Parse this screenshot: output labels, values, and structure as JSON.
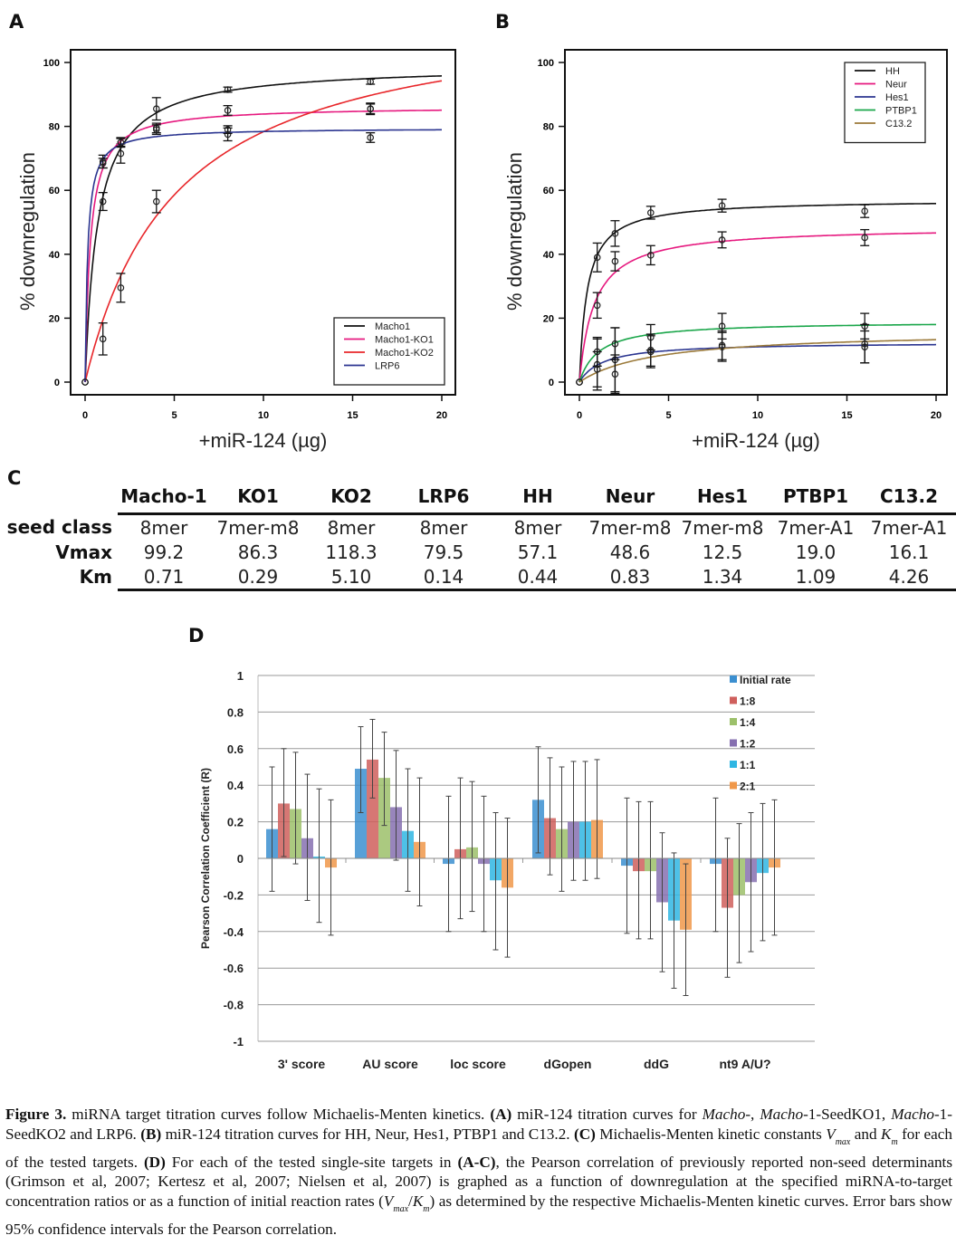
{
  "panels": {
    "A": {
      "letter": "A"
    },
    "B": {
      "letter": "B"
    },
    "C": {
      "letter": "C"
    },
    "D": {
      "letter": "D"
    }
  },
  "chart_data": [
    {
      "id": "A",
      "type": "line",
      "title": "",
      "xlabel": "+miR-124 (µg)",
      "ylabel": "% downregulation",
      "xlim": [
        0,
        20
      ],
      "ylim": [
        0,
        100
      ],
      "xticks": [
        0,
        5,
        10,
        15,
        20
      ],
      "yticks": [
        0,
        20,
        40,
        60,
        80,
        100
      ],
      "legend_position": "bottom-right",
      "x": [
        0,
        1,
        2,
        4,
        8,
        16
      ],
      "series": [
        {
          "name": "Macho1",
          "color": "#111111",
          "vmax": 99.2,
          "km": 0.71,
          "points": [
            0,
            56.5,
            71.5,
            85.5,
            91.5,
            94
          ],
          "err": [
            0,
            2.8,
            3,
            3.5,
            0.8,
            0.8
          ]
        },
        {
          "name": "Macho1-KO1",
          "color": "#e6197f",
          "vmax": 86.3,
          "km": 0.29,
          "points": [
            0,
            69,
            75,
            79.5,
            85,
            85.5
          ],
          "err": [
            0,
            2,
            1.5,
            1.5,
            1.5,
            1.8
          ]
        },
        {
          "name": "Macho1-KO2",
          "color": "#e8262a",
          "vmax": 118.3,
          "km": 5.1,
          "points": [
            0,
            13.5,
            29.5,
            56.5,
            77.5,
            76.5
          ],
          "err": [
            0,
            5,
            4.5,
            3.5,
            2,
            1.5
          ]
        },
        {
          "name": "LRP6",
          "color": "#2b3590",
          "vmax": 79.5,
          "km": 0.14,
          "points": [
            0,
            68.5,
            75,
            79,
            79,
            85.5
          ],
          "err": [
            0,
            1.5,
            1.2,
            1.5,
            1.2,
            1.5
          ]
        }
      ]
    },
    {
      "id": "B",
      "type": "line",
      "title": "",
      "xlabel": "+miR-124 (µg)",
      "ylabel": "% downregulation",
      "xlim": [
        0,
        20
      ],
      "ylim": [
        0,
        100
      ],
      "xticks": [
        0,
        5,
        10,
        15,
        20
      ],
      "yticks": [
        0,
        20,
        40,
        60,
        80,
        100
      ],
      "legend_position": "top-right",
      "x": [
        0,
        1,
        2,
        4,
        8,
        16
      ],
      "series": [
        {
          "name": "HH",
          "color": "#111111",
          "vmax": 57.1,
          "km": 0.44,
          "points": [
            0,
            39,
            46.5,
            53,
            55.2,
            53.5
          ],
          "err": [
            0,
            4.5,
            4,
            2,
            2,
            2
          ]
        },
        {
          "name": "Neur",
          "color": "#e6197f",
          "vmax": 48.6,
          "km": 0.83,
          "points": [
            0,
            24,
            37.8,
            39.7,
            44.5,
            45.2
          ],
          "err": [
            0,
            4,
            3,
            3,
            2.5,
            2.5
          ]
        },
        {
          "name": "Hes1",
          "color": "#2b3590",
          "vmax": 12.5,
          "km": 1.34,
          "points": [
            0,
            5.5,
            7,
            9.5,
            11,
            11
          ],
          "err": [
            0,
            8,
            10,
            5,
            4.5,
            5
          ]
        },
        {
          "name": "PTBP1",
          "color": "#1aa64a",
          "vmax": 19.0,
          "km": 1.09,
          "points": [
            0,
            9.5,
            12,
            14,
            17.5,
            17.5
          ],
          "err": [
            0,
            4.5,
            5,
            4,
            4,
            4
          ]
        },
        {
          "name": "C13.2",
          "color": "#9b7a3a",
          "vmax": 16.1,
          "km": 4.26,
          "points": [
            0,
            4,
            2.5,
            10,
            11.5,
            12
          ],
          "err": [
            0,
            5.5,
            6,
            5,
            4.5,
            6
          ]
        }
      ]
    },
    {
      "id": "C",
      "type": "table",
      "columns": [
        "Macho-1",
        "KO1",
        "KO2",
        "LRP6",
        "HH",
        "Neur",
        "Hes1",
        "PTBP1",
        "C13.2"
      ],
      "rows": [
        {
          "label": "seed class",
          "values": [
            "8mer",
            "7mer-m8",
            "8mer",
            "8mer",
            "8mer",
            "7mer-m8",
            "7mer-m8",
            "7mer-A1",
            "7mer-A1"
          ]
        },
        {
          "label": "Vmax",
          "values": [
            "99.2",
            "86.3",
            "118.3",
            "79.5",
            "57.1",
            "48.6",
            "12.5",
            "19.0",
            "16.1"
          ]
        },
        {
          "label": "Km",
          "values": [
            "0.71",
            "0.29",
            "5.10",
            "0.14",
            "0.44",
            "0.83",
            "1.34",
            "1.09",
            "4.26"
          ]
        }
      ]
    },
    {
      "id": "D",
      "type": "bar",
      "title": "",
      "xlabel": "",
      "ylabel": "Pearson Correlation Coefficient (R)",
      "ylim": [
        -1,
        1
      ],
      "yticks": [
        "1",
        "0.8",
        "0.6",
        "0.4",
        "0.2",
        "0",
        "-0.2",
        "-0.4",
        "-0.6",
        "-0.8",
        "-1"
      ],
      "grid": true,
      "legend_position": "top-right",
      "categories": [
        "3' score",
        "AU score",
        "loc score",
        "dGopen",
        "ddG",
        "nt9 A/U?"
      ],
      "series": [
        {
          "name": "Initial rate",
          "color": "#3b8fd0",
          "values": [
            0.16,
            0.49,
            -0.03,
            0.32,
            -0.04,
            -0.03
          ],
          "ci_low": [
            -0.18,
            0.25,
            -0.4,
            0.03,
            -0.41,
            -0.4
          ],
          "ci_high": [
            0.5,
            0.72,
            0.34,
            0.61,
            0.33,
            0.33
          ]
        },
        {
          "name": "1:8",
          "color": "#cf5f5c",
          "values": [
            0.3,
            0.54,
            0.05,
            0.22,
            -0.07,
            -0.27
          ],
          "ci_low": [
            0.01,
            0.33,
            -0.33,
            -0.09,
            -0.44,
            -0.65
          ],
          "ci_high": [
            0.6,
            0.76,
            0.44,
            0.55,
            0.31,
            0.11
          ]
        },
        {
          "name": "1:4",
          "color": "#9cc06a",
          "values": [
            0.27,
            0.44,
            0.06,
            0.16,
            -0.07,
            -0.2
          ],
          "ci_low": [
            -0.03,
            0.18,
            -0.29,
            -0.18,
            -0.44,
            -0.57
          ],
          "ci_high": [
            0.58,
            0.69,
            0.42,
            0.5,
            0.31,
            0.19
          ]
        },
        {
          "name": "1:2",
          "color": "#8670b0",
          "values": [
            0.11,
            0.28,
            -0.03,
            0.2,
            -0.24,
            -0.13
          ],
          "ci_low": [
            -0.23,
            -0.01,
            -0.4,
            -0.12,
            -0.62,
            -0.51
          ],
          "ci_high": [
            0.46,
            0.59,
            0.34,
            0.53,
            0.14,
            0.25
          ]
        },
        {
          "name": "1:1",
          "color": "#2fb6e3",
          "values": [
            0.01,
            0.15,
            -0.12,
            0.2,
            -0.34,
            -0.08
          ],
          "ci_low": [
            -0.35,
            -0.18,
            -0.5,
            -0.12,
            -0.71,
            -0.45
          ],
          "ci_high": [
            0.38,
            0.49,
            0.25,
            0.53,
            0.03,
            0.3
          ]
        },
        {
          "name": "2:1",
          "color": "#f0984a",
          "values": [
            -0.05,
            0.09,
            -0.16,
            0.21,
            -0.39,
            -0.05
          ],
          "ci_low": [
            -0.42,
            -0.26,
            -0.54,
            -0.11,
            -0.75,
            -0.42
          ],
          "ci_high": [
            0.32,
            0.44,
            0.22,
            0.54,
            -0.03,
            0.32
          ]
        }
      ]
    }
  ],
  "caption": {
    "label": "Figure 3.",
    "t1": " miRNA target titration curves follow Michaelis-Menten kinetics. ",
    "a": "(A)",
    "t2": " miR-124 titration curves for ",
    "i1": "Macho",
    "t3": "-, ",
    "i2": "Macho",
    "t4": "-1-SeedKO1, ",
    "i3": "Macho",
    "t5": "-1-SeedKO2 and LRP6. ",
    "b": "(B)",
    "t6": " miR-124 titration curves for HH, Neur, Hes1, PTBP1 and C13.2. ",
    "c": "(C)",
    "t7": " Michaelis-Menten kinetic constants ",
    "v": "V",
    "vsub": "max",
    "t8": " and ",
    "k": "K",
    "ksub": "m",
    "t9": " for each of the tested targets. ",
    "d": "(D)",
    "t10": " For each of the tested single-site targets in ",
    "ac": "(A-C)",
    "t11": ", the Pearson correlation of previously reported non-seed determinants (Grimson et al, 2007; Kertesz et al, 2007; Nielsen et al, 2007) is graphed as a function of downregulation at the specified miRNA-to-target concentration ratios or as a function of initial reaction rates (",
    "v2": "V",
    "v2sub": "max",
    "slash": "/",
    "k2": "K",
    "k2sub": "m",
    "t12": ") as determined by the respective Michaelis-Menten kinetic curves. Error bars show 95% confidence intervals for the Pearson correlation."
  }
}
